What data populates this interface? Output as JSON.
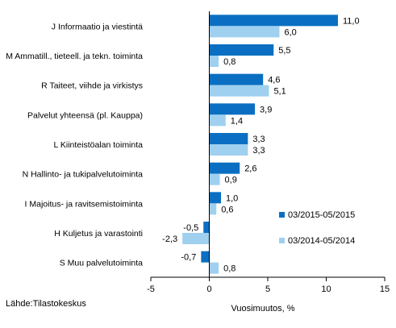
{
  "chart_data": {
    "type": "bar",
    "orientation": "horizontal",
    "categories": [
      "J Informaatio ja viestintä",
      "M Ammatill., tieteell. ja tekn. toiminta",
      "R Taiteet, viihde ja virkistys",
      "Palvelut yhteensä (pl. Kauppa)",
      "L Kiinteistöalan toiminta",
      "N Hallinto- ja tukipalvelutoiminta",
      "I Majoitus- ja ravitsemistoiminta",
      "H Kuljetus ja varastointi",
      "S Muu palvelutoiminta"
    ],
    "series": [
      {
        "name": "03/2015-05/2015",
        "color": "#0a6fc2",
        "values": [
          11.0,
          5.5,
          4.6,
          3.9,
          3.3,
          2.6,
          1.0,
          -0.5,
          -0.7
        ],
        "labels": [
          "11,0",
          "5,5",
          "4,6",
          "3,9",
          "3,3",
          "2,6",
          "1,0",
          "-0,5",
          "-0,7"
        ]
      },
      {
        "name": "03/2014-05/2014",
        "color": "#9fd0f0",
        "values": [
          6.0,
          0.8,
          5.1,
          1.4,
          3.3,
          0.9,
          0.6,
          -2.3,
          0.8
        ],
        "labels": [
          "6,0",
          "0,8",
          "5,1",
          "1,4",
          "3,3",
          "0,9",
          "0,6",
          "-2,3",
          "0,8"
        ]
      }
    ],
    "xlim": [
      -5,
      15
    ],
    "xticks": [
      -5,
      0,
      5,
      10,
      15
    ],
    "xtick_labels": [
      "-5",
      "0",
      "5",
      "10",
      "15"
    ],
    "xlabel": "Vuosimuutos, %",
    "source": "Lähde:Tilastokeskus",
    "grid": false,
    "legend_position": "inside-right"
  }
}
